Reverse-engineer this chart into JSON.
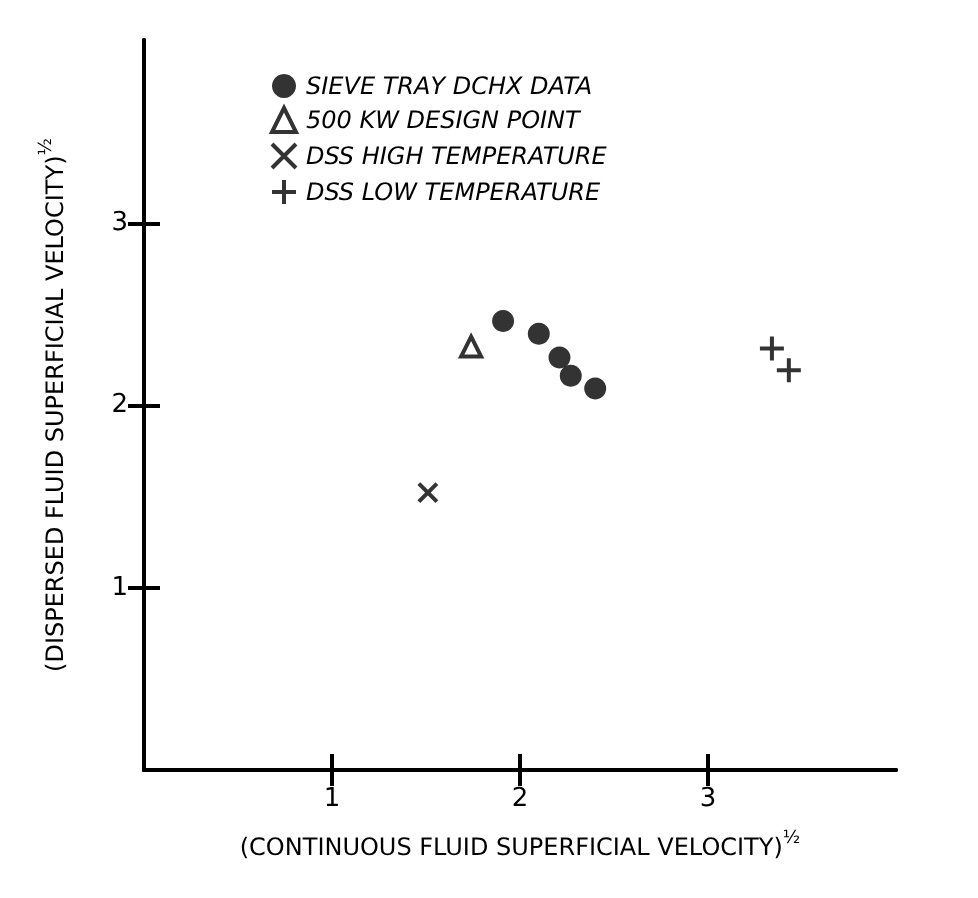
{
  "chart_data": {
    "type": "scatter",
    "xlabel": "(CONTINUOUS FLUID SUPERFICIAL VELOCITY)$^{½}$",
    "ylabel": "(DISPERSED FLUID SUPERFICIAL VELOCITY)$^{½}$",
    "xlim": [
      0,
      4
    ],
    "xticks": [
      1,
      2,
      3
    ],
    "ylim": [
      0,
      4
    ],
    "yticks": [
      1,
      2,
      3
    ],
    "grid": false,
    "legend": "top left",
    "series": [
      {
        "name": "SIEVE TRAY DCHX DATA",
        "color": "#000000",
        "marker": "circle",
        "x": [
          1.91,
          2.1,
          2.21,
          2.27,
          2.4
        ],
        "values": [
          2.46,
          2.39,
          2.26,
          2.16,
          2.09
        ]
      },
      {
        "name": "500 KW DESIGN POINT",
        "color": "#000000",
        "marker": "triangle",
        "x": [
          1.74
        ],
        "values": [
          2.32
        ]
      },
      {
        "name": "DSS HIGH TEMPERATURE",
        "color": "#000000",
        "marker": "cross",
        "x": [
          1.51
        ],
        "values": [
          1.52
        ]
      },
      {
        "name": "DSS LOW TEMPERATURE",
        "color": "#000000",
        "marker": "plus",
        "x": [
          3.34,
          3.43
        ],
        "values": [
          2.31,
          2.19
        ]
      }
    ]
  }
}
